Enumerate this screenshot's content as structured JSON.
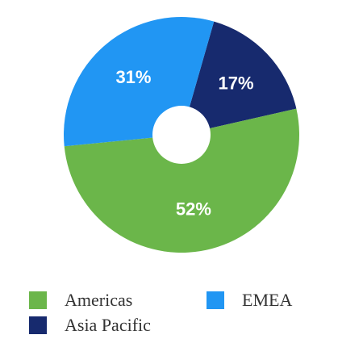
{
  "chart_data": {
    "type": "pie",
    "variant": "donut",
    "title": "",
    "slices": [
      {
        "name": "Asia Pacific",
        "value": 17,
        "label": "17%",
        "color": "#172a6e",
        "label_color": "#ffffff"
      },
      {
        "name": "Americas",
        "value": 52,
        "label": "52%",
        "color": "#6bb64a",
        "label_color": "#ffffff"
      },
      {
        "name": "EMEA",
        "value": 31,
        "label": "31%",
        "color": "#2196f3",
        "label_color": "#ffffff"
      }
    ],
    "legend": {
      "placement": "bottom",
      "entries": [
        {
          "name": "Americas",
          "color": "#6bb64a"
        },
        {
          "name": "EMEA",
          "color": "#2196f3"
        },
        {
          "name": "Asia Pacific",
          "color": "#172a6e"
        }
      ]
    }
  }
}
